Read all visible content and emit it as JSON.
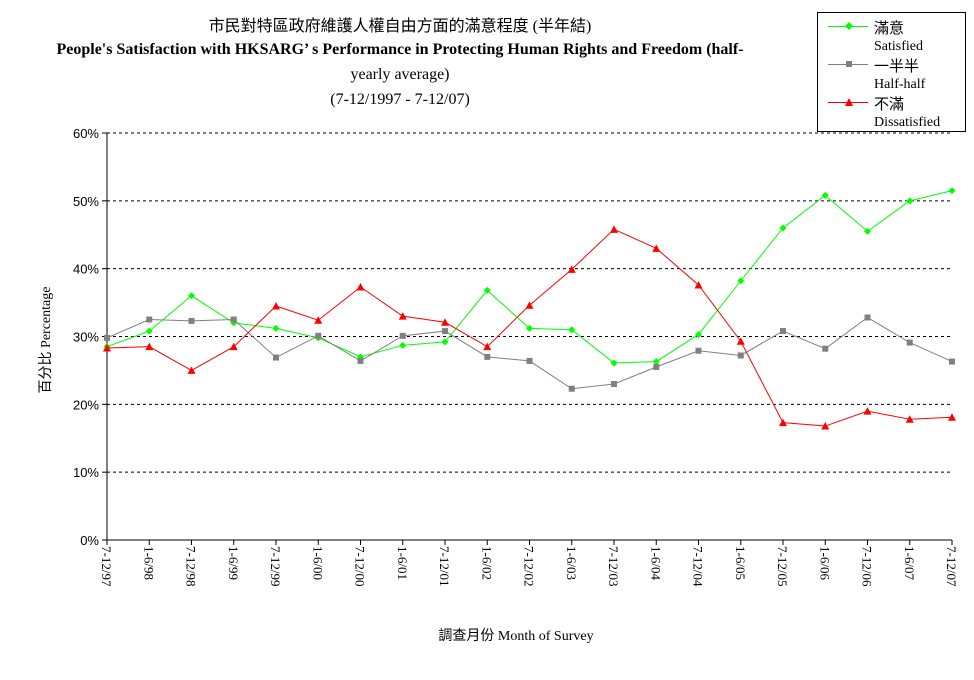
{
  "chart_data": {
    "type": "line",
    "title_cn": "市民對特區政府維護人權自由方面的滿意程度 (半年結)",
    "title_en_line1": "People's Satisfaction with HKSARG’ s Performance in Protecting Human Rights and Freedom (half-",
    "title_en_line2": "yearly average)",
    "subtitle": "(7-12/1997 - 7-12/07)",
    "xlabel": "調查月份 Month of Survey",
    "ylabel": "百分比 Percentage",
    "ylim": [
      0,
      60
    ],
    "yticks": [
      "0%",
      "10%",
      "20%",
      "30%",
      "40%",
      "50%",
      "60%"
    ],
    "grid": "horizontal dashed",
    "legend_position": "top-right",
    "categories": [
      "7-12/97",
      "1-6/98",
      "7-12/98",
      "1-6/99",
      "7-12/99",
      "1-6/00",
      "7-12/00",
      "1-6/01",
      "7-12/01",
      "1-6/02",
      "7-12/02",
      "1-6/03",
      "7-12/03",
      "1-6/04",
      "7-12/04",
      "1-6/05",
      "7-12/05",
      "1-6/06",
      "7-12/06",
      "1-6/07",
      "7-12/07"
    ],
    "series": [
      {
        "name_cn": "滿意",
        "name_en": "Satisfied",
        "color": "#00ff00",
        "marker": "diamond",
        "values": [
          28.5,
          30.8,
          36.0,
          32.0,
          31.2,
          29.8,
          27.0,
          28.7,
          29.2,
          36.8,
          31.2,
          31.0,
          26.1,
          26.3,
          30.3,
          38.2,
          46.0,
          50.8,
          45.5,
          50.0,
          51.5
        ]
      },
      {
        "name_cn": "一半半",
        "name_en": "Half-half",
        "color": "#808080",
        "marker": "square",
        "values": [
          29.8,
          32.5,
          32.3,
          32.5,
          26.9,
          30.1,
          26.4,
          30.1,
          30.8,
          27.0,
          26.4,
          22.3,
          23.0,
          25.5,
          27.9,
          27.2,
          30.8,
          28.2,
          32.8,
          29.1,
          26.3
        ]
      },
      {
        "name_cn": "不滿",
        "name_en": "Dissatisfied",
        "color": "#ff0000",
        "marker": "triangle",
        "values": [
          28.3,
          28.5,
          25.0,
          28.5,
          34.5,
          32.4,
          37.3,
          33.0,
          32.1,
          28.5,
          34.6,
          39.9,
          45.8,
          43.0,
          37.6,
          29.3,
          17.3,
          16.8,
          19.0,
          17.8,
          18.1
        ]
      }
    ]
  }
}
